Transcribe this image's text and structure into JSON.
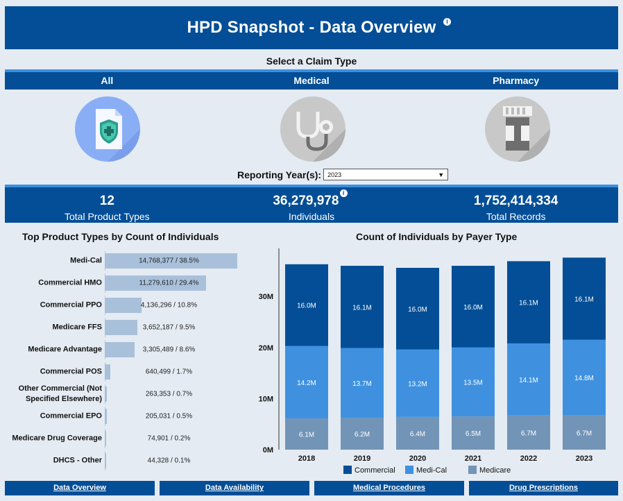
{
  "header": {
    "title": "HPD Snapshot - Data Overview",
    "info": "i"
  },
  "claim": {
    "label": "Select a Claim Type",
    "tabs": [
      {
        "label": "All"
      },
      {
        "label": "Medical"
      },
      {
        "label": "Pharmacy"
      }
    ]
  },
  "year": {
    "label": "Reporting Year(s):",
    "value": "2023",
    "caret": "▼"
  },
  "kpis": [
    {
      "value": "12",
      "label": "Total Product Types"
    },
    {
      "value": "36,279,978",
      "label": "Individuals"
    },
    {
      "value": "1,752,414,334",
      "label": "Total Records"
    }
  ],
  "left_chart": {
    "title": "Top Product Types by Count of Individuals",
    "rows": [
      {
        "category": "Medi-Cal",
        "value": 14768377,
        "label": "14,768,377 / 38.5%"
      },
      {
        "category": "Commercial HMO",
        "value": 11279610,
        "label": "11,279,610 / 29.4%"
      },
      {
        "category": "Commercial PPO",
        "value": 4136296,
        "label": "4,136,296 / 10.8%"
      },
      {
        "category": "Medicare FFS",
        "value": 3652187,
        "label": "3,652,187 / 9.5%"
      },
      {
        "category": "Medicare Advantage",
        "value": 3305489,
        "label": "3,305,489 / 8.6%"
      },
      {
        "category": "Commercial POS",
        "value": 640499,
        "label": "640,499 / 1.7%"
      },
      {
        "category": "Other Commercial (Not Specified Elsewhere)",
        "value": 263353,
        "label": "263,353 / 0.7%"
      },
      {
        "category": "Commercial EPO",
        "value": 205031,
        "label": "205,031 / 0.5%"
      },
      {
        "category": "Medicare Drug Coverage",
        "value": 74901,
        "label": "74,901 / 0.2%"
      },
      {
        "category": "DHCS - Other",
        "value": 44328,
        "label": "44,328 / 0.1%"
      }
    ]
  },
  "chart_data": {
    "type": "bar",
    "stacked": true,
    "title": "Count of Individuals by Payer Type",
    "categories": [
      "2018",
      "2019",
      "2020",
      "2021",
      "2022",
      "2023"
    ],
    "yticks": [
      "0M",
      "10M",
      "20M",
      "30M"
    ],
    "ylim": [
      0,
      38
    ],
    "series": [
      {
        "name": "Medicare",
        "color": "#7294b6",
        "values": [
          6.1,
          6.2,
          6.4,
          6.5,
          6.7,
          6.7
        ],
        "labels": [
          "6.1M",
          "6.2M",
          "6.4M",
          "6.5M",
          "6.7M",
          "6.7M"
        ]
      },
      {
        "name": "Medi-Cal",
        "color": "#3f91e0",
        "values": [
          14.2,
          13.7,
          13.2,
          13.5,
          14.1,
          14.8
        ],
        "labels": [
          "14.2M",
          "13.7M",
          "13.2M",
          "13.5M",
          "14.1M",
          "14.8M"
        ]
      },
      {
        "name": "Commercial",
        "color": "#034e96",
        "values": [
          16.0,
          16.1,
          16.0,
          16.0,
          16.1,
          16.1
        ],
        "labels": [
          "16.0M",
          "16.1M",
          "16.0M",
          "16.0M",
          "16.1M",
          "16.1M"
        ]
      }
    ],
    "legend": [
      "Commercial",
      "Medi-Cal",
      "Medicare"
    ],
    "legend_position": "bottom"
  },
  "nav": [
    {
      "label": "Data Overview"
    },
    {
      "label": "Data Availability"
    },
    {
      "label": "Medical Procedures"
    },
    {
      "label": "Drug Prescriptions"
    }
  ]
}
